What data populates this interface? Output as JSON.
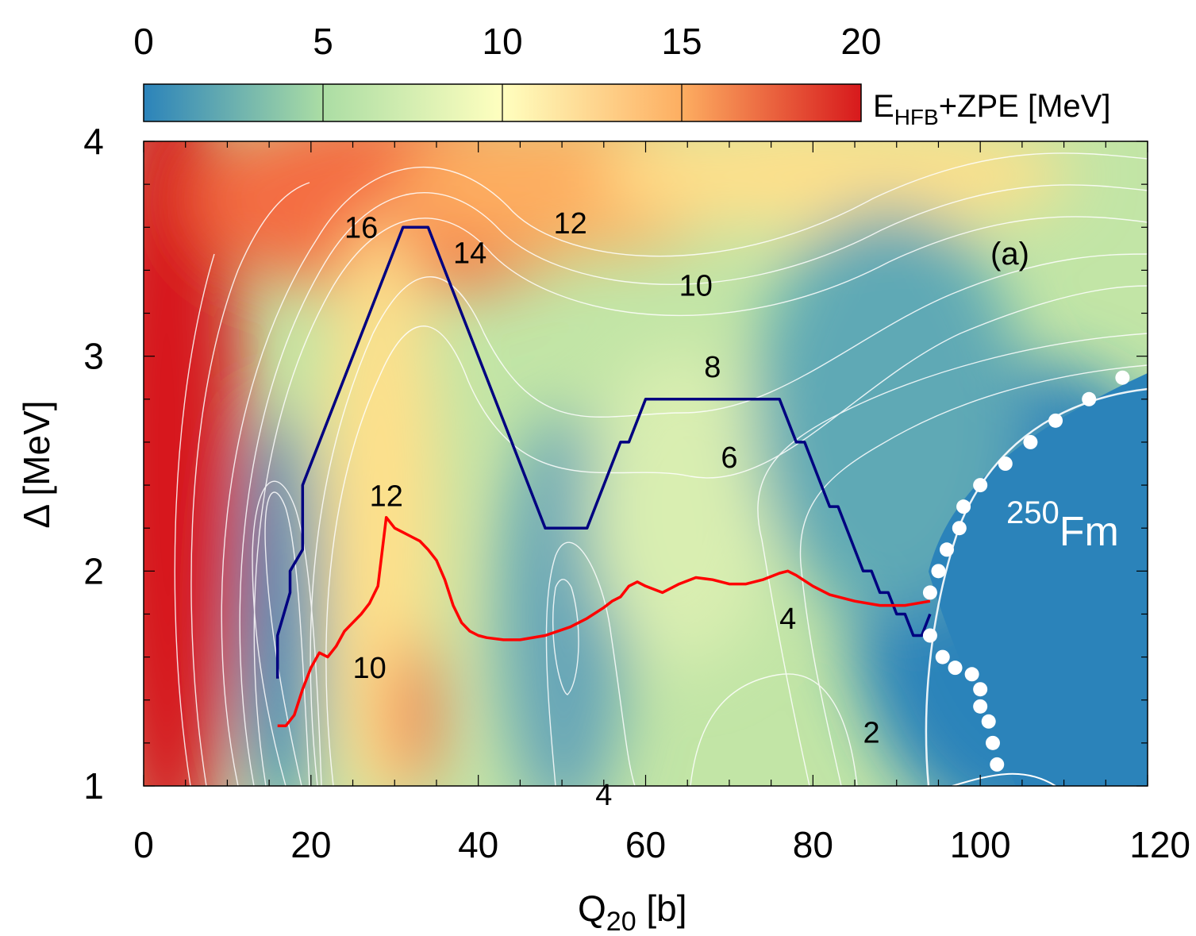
{
  "chart_data": {
    "type": "heatmap",
    "title": "",
    "panel_label": "(a)",
    "nucleus": {
      "mass": "250",
      "symbol": "Fm"
    },
    "xlabel": {
      "main": "Q",
      "sub": "20",
      "unit": " [b]"
    },
    "ylabel": "Δ [MeV]",
    "xlim": [
      0,
      120
    ],
    "ylim": [
      1,
      4
    ],
    "x_ticks": [
      0,
      20,
      40,
      60,
      80,
      100,
      120
    ],
    "x_tick_labels": [
      "0",
      "20",
      "40",
      "60",
      "80",
      "100",
      "120"
    ],
    "y_ticks": [
      1,
      2,
      3,
      4
    ],
    "y_tick_labels": [
      "1",
      "2",
      "3",
      "4"
    ],
    "colorbar": {
      "label_main": "E",
      "label_sub": "HFB",
      "label_rest": "+ZPE [MeV]",
      "range": [
        0,
        20
      ],
      "ticks": [
        0,
        5,
        10,
        15,
        20
      ],
      "tick_labels": [
        "0",
        "5",
        "10",
        "15",
        "20"
      ],
      "colors": [
        "#2b83ba",
        "#abdda4",
        "#ffffbf",
        "#fdae61",
        "#d7191c"
      ]
    },
    "contour_labels": [
      {
        "text": "16",
        "x": 26,
        "y": 3.6
      },
      {
        "text": "14",
        "x": 39,
        "y": 3.48
      },
      {
        "text": "12",
        "x": 51,
        "y": 3.62
      },
      {
        "text": "10",
        "x": 66,
        "y": 3.33
      },
      {
        "text": "8",
        "x": 68,
        "y": 2.95
      },
      {
        "text": "6",
        "x": 70,
        "y": 2.53
      },
      {
        "text": "4",
        "x": 77,
        "y": 1.78
      },
      {
        "text": "2",
        "x": 87,
        "y": 1.25
      },
      {
        "text": "12",
        "x": 29,
        "y": 2.35
      },
      {
        "text": "10",
        "x": 27,
        "y": 1.55
      },
      {
        "text": "4",
        "x": 55,
        "y": 0.96
      }
    ],
    "series": [
      {
        "name": "blue path",
        "color": "#000080",
        "x": [
          16,
          16,
          17.5,
          17.5,
          19,
          19,
          31,
          34,
          48,
          53,
          57,
          58,
          60,
          76,
          78,
          79,
          82,
          83,
          86,
          87,
          88,
          89,
          90,
          91,
          92,
          93,
          94
        ],
        "y": [
          1.5,
          1.7,
          1.9,
          2.0,
          2.1,
          2.4,
          3.6,
          3.6,
          2.2,
          2.2,
          2.6,
          2.6,
          2.8,
          2.8,
          2.6,
          2.6,
          2.3,
          2.3,
          2.0,
          2.0,
          1.9,
          1.9,
          1.8,
          1.8,
          1.7,
          1.7,
          1.8
        ]
      },
      {
        "name": "red path",
        "color": "#ff0000",
        "x": [
          16,
          17,
          18,
          19,
          20,
          21,
          22,
          23,
          24,
          25,
          26,
          27,
          28,
          29,
          30,
          31,
          32,
          33,
          34,
          35,
          36,
          37,
          38,
          39,
          40,
          41,
          43,
          45,
          48,
          51,
          53,
          55,
          56,
          57,
          58,
          59,
          60,
          62,
          64,
          66,
          68,
          70,
          72,
          74,
          76,
          77,
          78,
          80,
          82,
          85,
          88,
          91,
          94
        ],
        "y": [
          1.28,
          1.28,
          1.33,
          1.45,
          1.55,
          1.62,
          1.6,
          1.65,
          1.72,
          1.76,
          1.8,
          1.85,
          1.93,
          2.25,
          2.2,
          2.18,
          2.16,
          2.14,
          2.1,
          2.05,
          1.96,
          1.84,
          1.76,
          1.72,
          1.7,
          1.69,
          1.68,
          1.68,
          1.7,
          1.74,
          1.78,
          1.83,
          1.86,
          1.88,
          1.93,
          1.95,
          1.93,
          1.9,
          1.94,
          1.97,
          1.96,
          1.94,
          1.94,
          1.96,
          1.99,
          2.0,
          1.98,
          1.93,
          1.89,
          1.86,
          1.84,
          1.84,
          1.86
        ]
      },
      {
        "name": "white points",
        "color": "#ffffff",
        "x": [
          117,
          113,
          109,
          106,
          103,
          100,
          98,
          97.5,
          96,
          95,
          94,
          94,
          95.5,
          97,
          99,
          100,
          100,
          101,
          101.5,
          102
        ],
        "y": [
          2.9,
          2.8,
          2.7,
          2.6,
          2.5,
          2.4,
          2.3,
          2.2,
          2.1,
          2.0,
          1.9,
          1.7,
          1.6,
          1.55,
          1.52,
          1.45,
          1.37,
          1.3,
          1.2,
          1.1
        ]
      }
    ]
  }
}
